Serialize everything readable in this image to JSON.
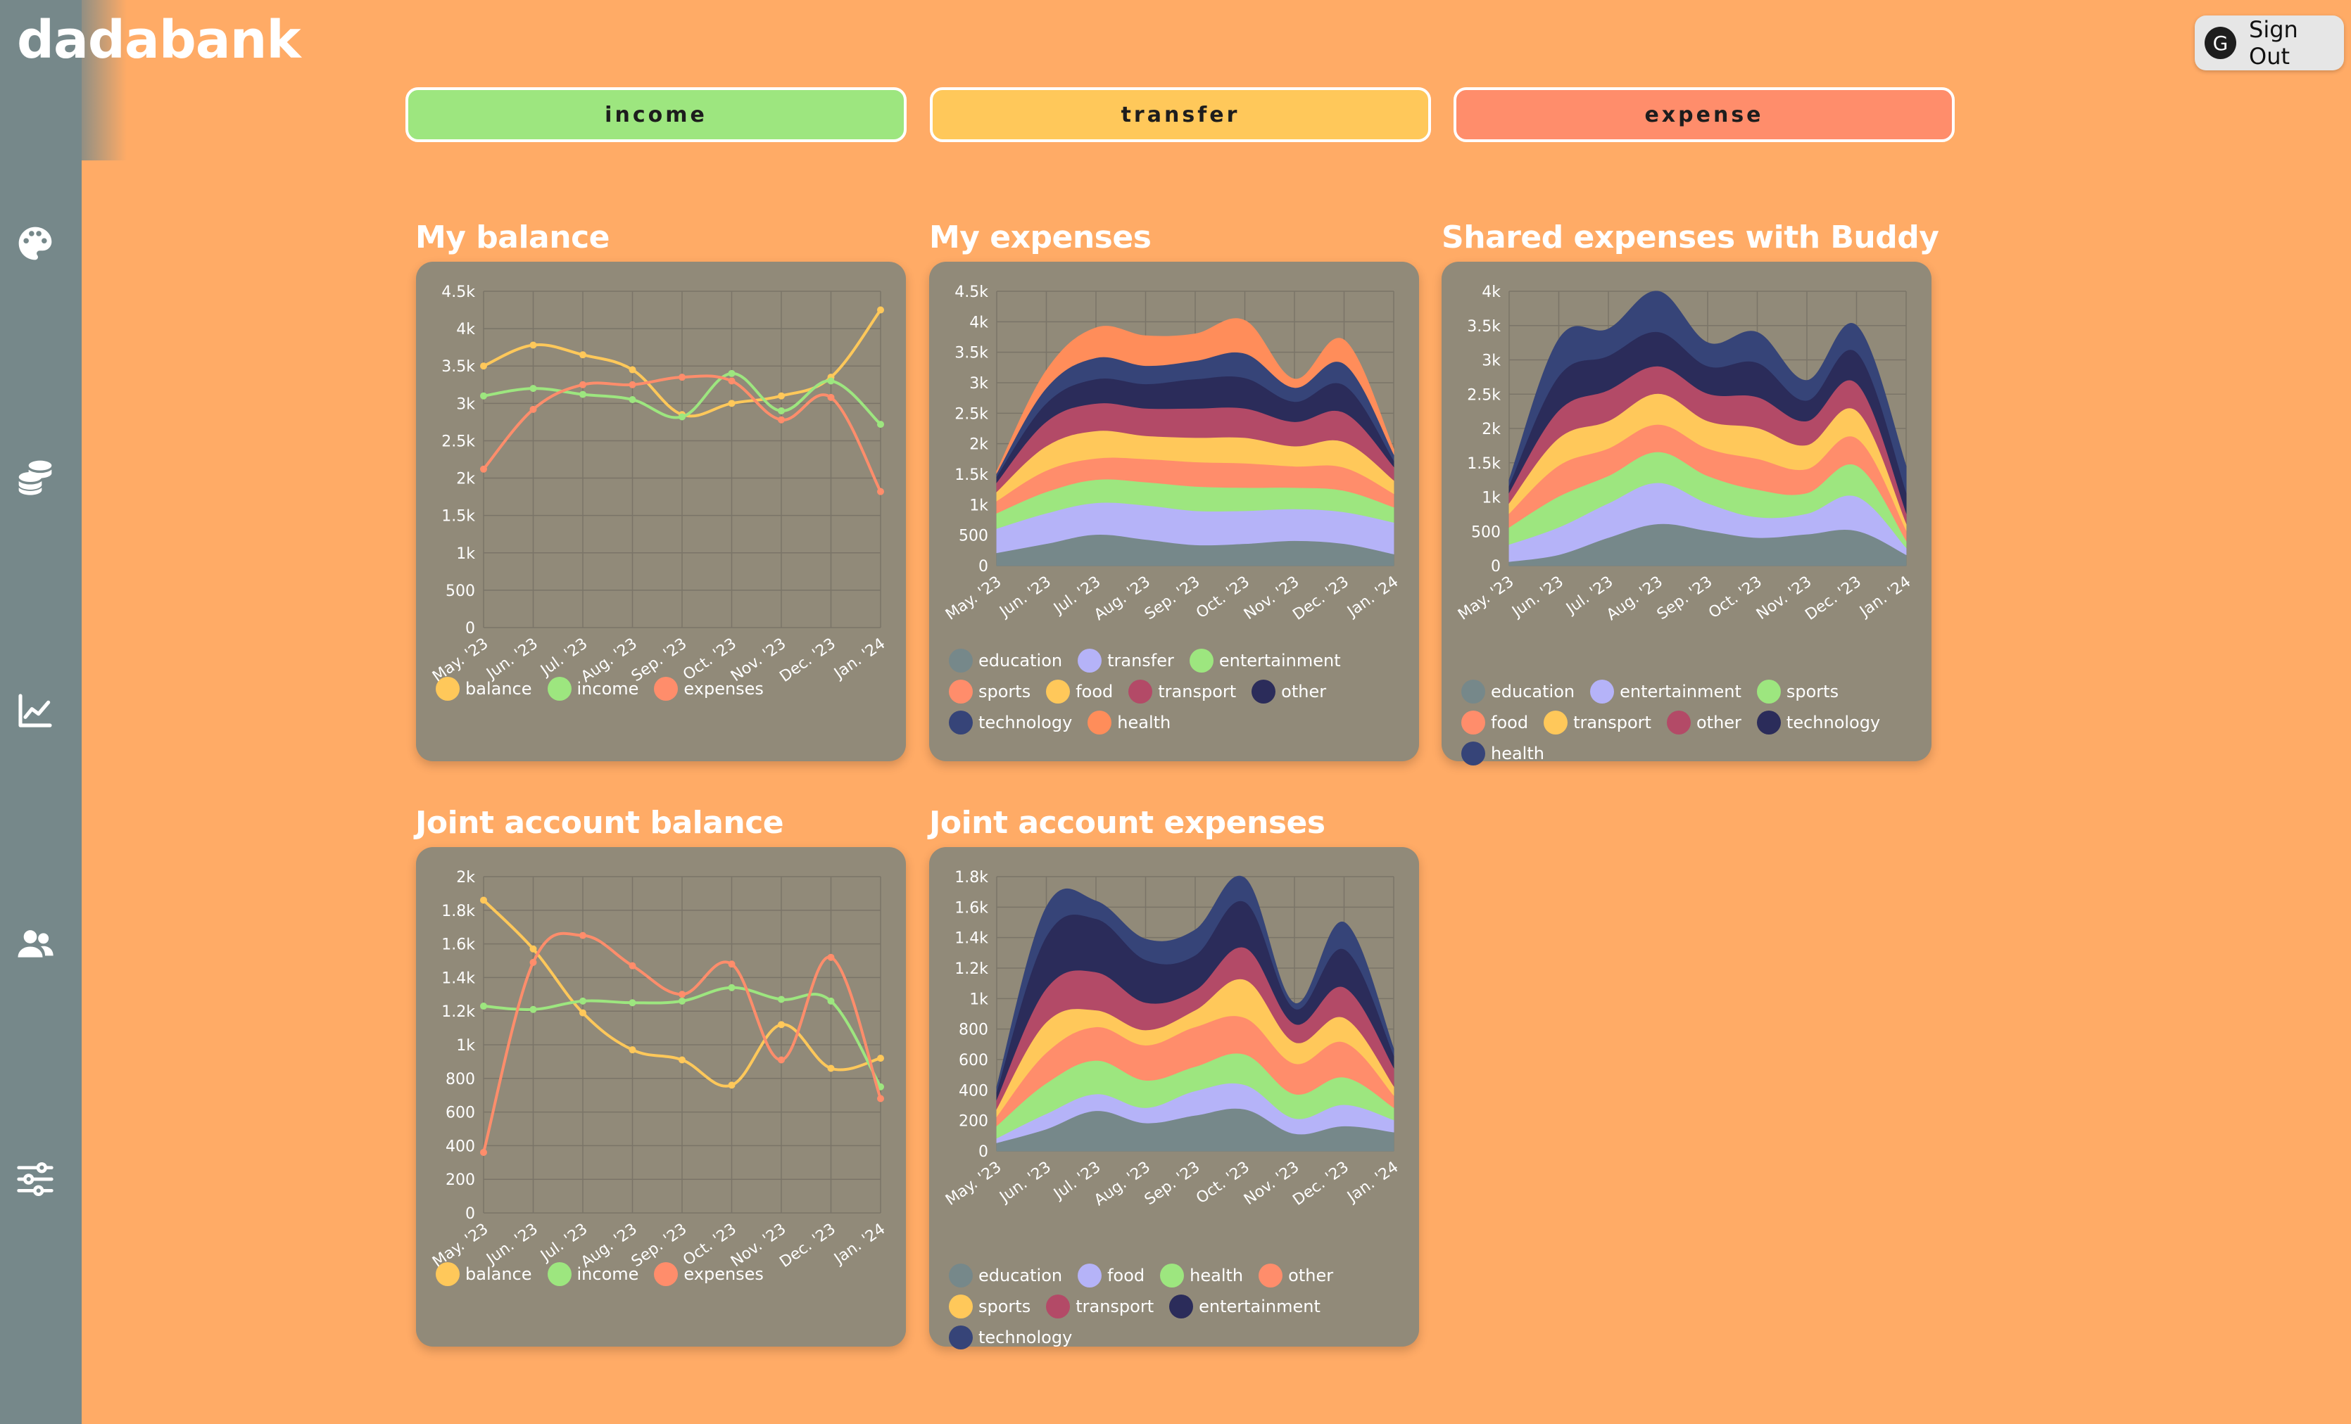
{
  "app": {
    "brand": "dadabank"
  },
  "header": {
    "signout_label": "Sign Out",
    "avatar_letter": "G"
  },
  "sidebar": {
    "icons": [
      "palette-icon",
      "coins-icon",
      "chart-line-icon",
      "users-icon",
      "sliders-icon"
    ]
  },
  "actions": [
    {
      "label": "income",
      "color": "#9de67f"
    },
    {
      "label": "transfer",
      "color": "#ffc85a"
    },
    {
      "label": "expense",
      "color": "#ff8d6b"
    }
  ],
  "colors": {
    "education": "#76888a",
    "transfer": "#b5b3f8",
    "entertainment": "#9de67f",
    "sports": "#ff8d6b",
    "food": "#ffc85a",
    "transport": "#b34a67",
    "other": "#2b2c5a",
    "technology": "#364478",
    "health": "#ff8d5a",
    "balance": "#ffc85a",
    "income": "#9de67f",
    "expenses": "#ff8d6b"
  },
  "charts": [
    {
      "title": "My balance",
      "chart_data": {
        "type": "line",
        "categories": [
          "May. '23",
          "Jun. '23",
          "Jul. '23",
          "Aug. '23",
          "Sep. '23",
          "Oct. '23",
          "Nov. '23",
          "Dec. '23",
          "Jan. '24"
        ],
        "ylim": [
          0,
          4500
        ],
        "yticks": [
          0,
          500,
          1000,
          1500,
          2000,
          2500,
          3000,
          3500,
          4000,
          4500
        ],
        "ytick_labels": [
          "0",
          "500",
          "1k",
          "1.5k",
          "2k",
          "2.5k",
          "3k",
          "3.5k",
          "4k",
          "4.5k"
        ],
        "series": [
          {
            "name": "balance",
            "color": "#ffc85a",
            "values": [
              3500,
              3780,
              3650,
              3450,
              2850,
              3000,
              3100,
              3350,
              4250
            ]
          },
          {
            "name": "income",
            "color": "#9de67f",
            "values": [
              3100,
              3200,
              3120,
              3050,
              2820,
              3400,
              2900,
              3300,
              2720
            ]
          },
          {
            "name": "expenses",
            "color": "#ff8d6b",
            "values": [
              2120,
              2920,
              3250,
              3250,
              3350,
              3300,
              2780,
              3080,
              1820
            ]
          }
        ]
      }
    },
    {
      "title": "My expenses",
      "chart_data": {
        "type": "area",
        "categories": [
          "May. '23",
          "Jun. '23",
          "Jul. '23",
          "Aug. '23",
          "Sep. '23",
          "Oct. '23",
          "Nov. '23",
          "Dec. '23",
          "Jan. '24"
        ],
        "ylim": [
          0,
          4500
        ],
        "yticks": [
          0,
          500,
          1000,
          1500,
          2000,
          2500,
          3000,
          3500,
          4000,
          4500
        ],
        "ytick_labels": [
          "0",
          "500",
          "1k",
          "1.5k",
          "2k",
          "2.5k",
          "3k",
          "3.5k",
          "4k",
          "4.5k"
        ],
        "stacked": true,
        "series": [
          {
            "name": "education",
            "color": "#76888a",
            "values": [
              200,
              350,
              500,
              420,
              330,
              350,
              400,
              350,
              180
            ]
          },
          {
            "name": "transfer",
            "color": "#b5b3f8",
            "values": [
              400,
              500,
              520,
              560,
              560,
              540,
              520,
              520,
              520
            ]
          },
          {
            "name": "entertainment",
            "color": "#9de67f",
            "values": [
              250,
              350,
              380,
              380,
              400,
              380,
              350,
              350,
              250
            ]
          },
          {
            "name": "sports",
            "color": "#ff8d6b",
            "values": [
              200,
              350,
              350,
              380,
              400,
              400,
              350,
              380,
              220
            ]
          },
          {
            "name": "food",
            "color": "#ffc85a",
            "values": [
              150,
              400,
              450,
              380,
              400,
              420,
              330,
              420,
              220
            ]
          },
          {
            "name": "transport",
            "color": "#b34a67",
            "values": [
              150,
              400,
              450,
              450,
              480,
              480,
              400,
              480,
              220
            ]
          },
          {
            "name": "other",
            "color": "#2b2c5a",
            "values": [
              100,
              300,
              400,
              400,
              480,
              500,
              330,
              450,
              100
            ]
          },
          {
            "name": "technology",
            "color": "#364478",
            "values": [
              50,
              250,
              350,
              300,
              300,
              400,
              230,
              350,
              100
            ]
          },
          {
            "name": "health",
            "color": "#ff8d5a",
            "values": [
              50,
              300,
              500,
              500,
              450,
              550,
              150,
              400,
              100
            ]
          }
        ]
      }
    },
    {
      "title": "Shared expenses with Buddy",
      "chart_data": {
        "type": "area",
        "categories": [
          "May. '23",
          "Jun. '23",
          "Jul. '23",
          "Aug. '23",
          "Sep. '23",
          "Oct. '23",
          "Nov. '23",
          "Dec. '23",
          "Jan. '24"
        ],
        "ylim": [
          0,
          4000
        ],
        "yticks": [
          0,
          500,
          1000,
          1500,
          2000,
          2500,
          3000,
          3500,
          4000
        ],
        "ytick_labels": [
          "0",
          "500",
          "1k",
          "1.5k",
          "2k",
          "2.5k",
          "3k",
          "3.5k",
          "4k"
        ],
        "stacked": true,
        "series": [
          {
            "name": "education",
            "color": "#76888a",
            "values": [
              50,
              150,
              400,
              600,
              500,
              400,
              450,
              500,
              150
            ]
          },
          {
            "name": "entertainment",
            "color": "#b5b3f8",
            "values": [
              250,
              400,
              500,
              600,
              400,
              300,
              300,
              500,
              100
            ]
          },
          {
            "name": "sports",
            "color": "#9de67f",
            "values": [
              250,
              450,
              400,
              450,
              400,
              400,
              300,
              450,
              100
            ]
          },
          {
            "name": "food",
            "color": "#ff8d6b",
            "values": [
              200,
              450,
              400,
              400,
              400,
              450,
              350,
              400,
              150
            ]
          },
          {
            "name": "transport",
            "color": "#ffc85a",
            "values": [
              150,
              400,
              400,
              450,
              400,
              450,
              350,
              400,
              100
            ]
          },
          {
            "name": "other",
            "color": "#b34a67",
            "values": [
              150,
              400,
              450,
              400,
              400,
              450,
              350,
              400,
              150
            ]
          },
          {
            "name": "technology",
            "color": "#2b2c5a",
            "values": [
              100,
              500,
              500,
              500,
              400,
              500,
              300,
              450,
              300
            ]
          },
          {
            "name": "health",
            "color": "#364478",
            "values": [
              100,
              550,
              400,
              600,
              350,
              450,
              300,
              400,
              400
            ]
          }
        ]
      }
    },
    {
      "title": "Joint account balance",
      "chart_data": {
        "type": "line",
        "categories": [
          "May. '23",
          "Jun. '23",
          "Jul. '23",
          "Aug. '23",
          "Sep. '23",
          "Oct. '23",
          "Nov. '23",
          "Dec. '23",
          "Jan. '24"
        ],
        "ylim": [
          0,
          2000
        ],
        "yticks": [
          0,
          200,
          400,
          600,
          800,
          1000,
          1200,
          1400,
          1600,
          1800,
          2000
        ],
        "ytick_labels": [
          "0",
          "200",
          "400",
          "600",
          "800",
          "1k",
          "1.2k",
          "1.4k",
          "1.6k",
          "1.8k",
          "2k"
        ],
        "series": [
          {
            "name": "balance",
            "color": "#ffc85a",
            "values": [
              1860,
              1570,
              1190,
              970,
              910,
              760,
              1120,
              860,
              920
            ]
          },
          {
            "name": "income",
            "color": "#9de67f",
            "values": [
              1230,
              1210,
              1260,
              1250,
              1260,
              1340,
              1270,
              1260,
              750
            ]
          },
          {
            "name": "expenses",
            "color": "#ff8d6b",
            "values": [
              360,
              1490,
              1650,
              1470,
              1300,
              1480,
              910,
              1520,
              680
            ]
          }
        ]
      }
    },
    {
      "title": "Joint account expenses",
      "chart_data": {
        "type": "area",
        "categories": [
          "May. '23",
          "Jun. '23",
          "Jul. '23",
          "Aug. '23",
          "Sep. '23",
          "Oct. '23",
          "Nov. '23",
          "Dec. '23",
          "Jan. '24"
        ],
        "ylim": [
          0,
          1800
        ],
        "yticks": [
          0,
          200,
          400,
          600,
          800,
          1000,
          1200,
          1400,
          1600,
          1800
        ],
        "ytick_labels": [
          "0",
          "200",
          "400",
          "600",
          "800",
          "1k",
          "1.2k",
          "1.4k",
          "1.6k",
          "1.8k"
        ],
        "stacked": true,
        "series": [
          {
            "name": "education",
            "color": "#76888a",
            "values": [
              50,
              140,
              260,
              180,
              230,
              270,
              110,
              160,
              120
            ]
          },
          {
            "name": "food",
            "color": "#b5b3f8",
            "values": [
              30,
              100,
              110,
              100,
              160,
              160,
              100,
              140,
              80
            ]
          },
          {
            "name": "health",
            "color": "#9de67f",
            "values": [
              80,
              200,
              220,
              180,
              160,
              200,
              160,
              180,
              80
            ]
          },
          {
            "name": "other",
            "color": "#ff8d6b",
            "values": [
              60,
              200,
              220,
              230,
              260,
              240,
              200,
              230,
              80
            ]
          },
          {
            "name": "sports",
            "color": "#ffc85a",
            "values": [
              50,
              200,
              110,
              100,
              110,
              250,
              140,
              160,
              60
            ]
          },
          {
            "name": "transport",
            "color": "#b34a67",
            "values": [
              60,
              220,
              250,
              180,
              130,
              210,
              120,
              200,
              120
            ]
          },
          {
            "name": "entertainment",
            "color": "#2b2c5a",
            "values": [
              50,
              340,
              350,
              280,
              230,
              300,
              100,
              250,
              80
            ]
          },
          {
            "name": "technology",
            "color": "#364478",
            "values": [
              40,
              200,
              120,
              140,
              170,
              160,
              40,
              180,
              50
            ]
          }
        ]
      }
    }
  ]
}
